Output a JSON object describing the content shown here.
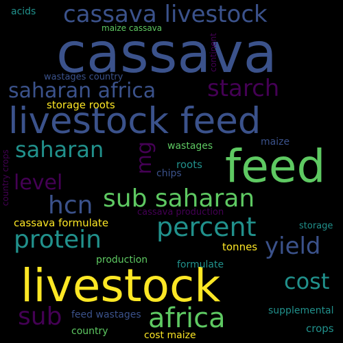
{
  "colors": {
    "background": "#000000",
    "yellow": "#fde725",
    "green": "#5ec962",
    "teal": "#21918c",
    "blue": "#3b528b",
    "purple": "#440154"
  },
  "words": {
    "cassava": "cassava",
    "cassava_livestock": "cassava livestock",
    "livestock_feed": "livestock feed",
    "saharan_africa": "saharan africa",
    "starch": "starch",
    "feed": "feed",
    "saharan": "saharan",
    "mg": "mg",
    "level": "level",
    "hcn": "hcn",
    "sub_saharan": "sub saharan",
    "percent": "percent",
    "protein": "protein",
    "yield": "yield",
    "livestock": "livestock",
    "cost": "cost",
    "sub": "sub",
    "africa": "africa",
    "acids": "acids",
    "maize_cassava": "maize cassava",
    "wastages_country": "wastages country",
    "continent": "continent",
    "storage_roots": "storage roots",
    "wastages": "wastages",
    "maize": "maize",
    "roots": "roots",
    "chips": "chips",
    "country_crops": "country crops",
    "cassava_formulate": "cassava formulate",
    "cassava_production": "cassava production",
    "storage": "storage",
    "tonnes": "tonnes",
    "production": "production",
    "formulate": "formulate",
    "supplemental": "supplemental",
    "feed_wastages": "feed wastages",
    "crops": "crops",
    "country": "country",
    "cost_maize": "cost maize"
  }
}
